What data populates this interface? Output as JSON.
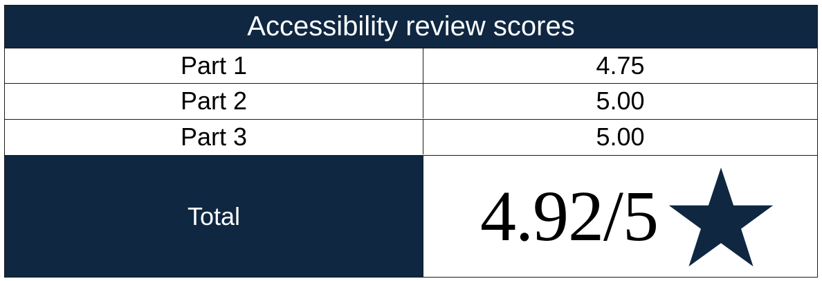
{
  "table": {
    "title": "Accessibility review scores",
    "rows": [
      {
        "label": "Part 1",
        "value": "4.75"
      },
      {
        "label": "Part 2",
        "value": "5.00"
      },
      {
        "label": "Part 3",
        "value": "5.00"
      }
    ],
    "total": {
      "label": "Total",
      "value": "4.92/5",
      "icon": "star-icon"
    }
  },
  "colors": {
    "header_bg": "#0f2741",
    "header_text": "#ffffff",
    "star": "#0f2741"
  }
}
